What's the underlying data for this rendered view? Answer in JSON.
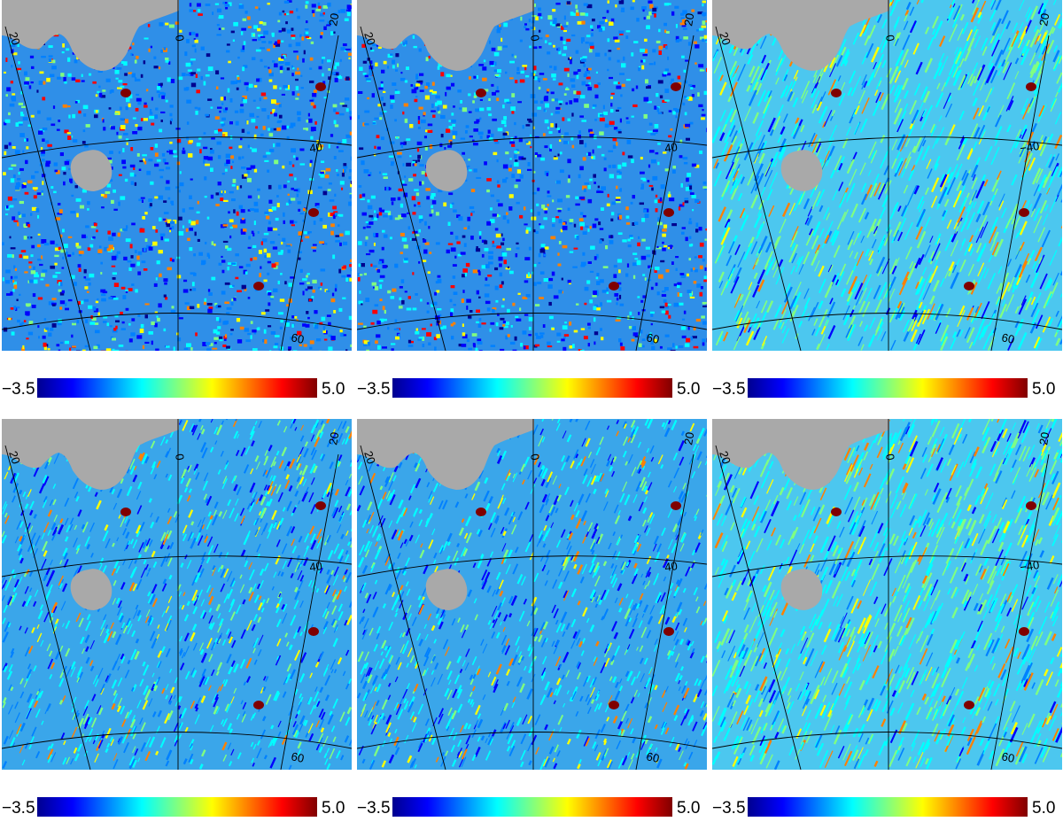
{
  "panels": [
    {
      "id": "p1",
      "style": "noisy",
      "cmin": "−3.5",
      "cmax": "5.0",
      "labels": {
        "lonLeft": "20",
        "lonMid": "0",
        "lonRight": "20",
        "lat40": "40",
        "lat60": "60"
      }
    },
    {
      "id": "p2",
      "style": "noisy",
      "cmin": "−3.5",
      "cmax": "5.0",
      "labels": {
        "lonLeft": "20",
        "lonMid": "0",
        "lonRight": "20",
        "lat40": "40",
        "lat60": "60"
      }
    },
    {
      "id": "p3",
      "style": "smooth",
      "cmin": "−3.5",
      "cmax": "5.0",
      "labels": {
        "lonLeft": "20",
        "lonMid": "0",
        "lonRight": "20",
        "lat40": "−40",
        "lat60": "60"
      }
    },
    {
      "id": "p4",
      "style": "textured",
      "cmin": "−3.5",
      "cmax": "5.0",
      "labels": {
        "lonLeft": "20",
        "lonMid": "0",
        "lonRight": "20",
        "lat40": "40",
        "lat60": "60"
      }
    },
    {
      "id": "p5",
      "style": "textured",
      "cmin": "−3.5",
      "cmax": "5.0",
      "labels": {
        "lonLeft": "20",
        "lonMid": "0",
        "lonRight": "20",
        "lat40": "40",
        "lat60": "60"
      }
    },
    {
      "id": "p6",
      "style": "smooth",
      "cmin": "−3.5",
      "cmax": "5.0",
      "labels": {
        "lonLeft": "20",
        "lonMid": "0",
        "lonRight": "20",
        "lat40": "−40",
        "lat60": "60"
      }
    }
  ],
  "colors": {
    "mask": "#a9a9a9",
    "colormap": [
      "#00008f",
      "#0000ff",
      "#0080ff",
      "#00ffff",
      "#80ff80",
      "#ffff00",
      "#ff8000",
      "#ff0000",
      "#800000"
    ]
  }
}
